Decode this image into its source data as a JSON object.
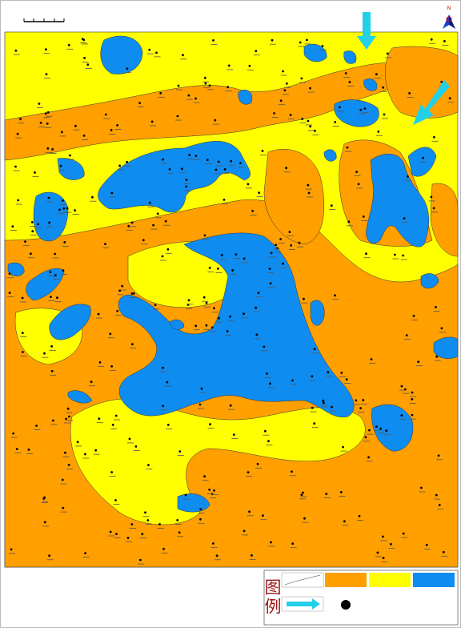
{
  "legend": {
    "title": "图例"
  },
  "north": "N"
}
